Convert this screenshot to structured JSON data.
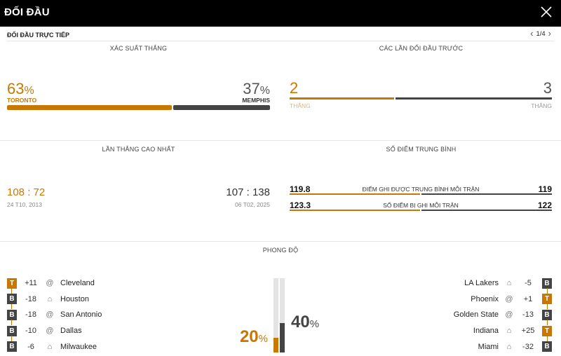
{
  "header": {
    "title": "ĐỐI ĐẦU",
    "close_icon": "close-icon"
  },
  "subheader": {
    "label": "ĐỐI ĐẦU TRỰC TIẾP",
    "pager": "1/4"
  },
  "win_probability": {
    "title": "XÁC SUẤT THẮNG",
    "home_value": "63",
    "home_unit": "%",
    "home_team": "TORONTO",
    "away_value": "37",
    "away_unit": "%",
    "away_team": "MEMPHIS",
    "home_fraction": 0.63
  },
  "previous_meetings": {
    "title": "CÁC LẦN ĐỐI ĐẦU TRƯỚC",
    "home_wins": "2",
    "away_wins": "3",
    "home_label": "THẮNG",
    "away_label": "THẮNG",
    "home_fraction": 0.4
  },
  "biggest_win": {
    "title": "LẦN THẮNG CAO NHẤT",
    "home_score_a": "108",
    "home_score_b": "72",
    "home_date": "24 T10, 2013",
    "away_score_a": "107",
    "away_score_b": "138",
    "away_date": "06 T02, 2025",
    "sep": ":"
  },
  "average_points": {
    "title": "SỐ ĐIỂM TRUNG BÌNH",
    "rows": [
      {
        "label": "ĐIỂM GHI ĐƯỢC TRUNG BÌNH MỖI TRẬN",
        "home": "119.8",
        "away": "119",
        "home_fraction": 0.5
      },
      {
        "label": "SỐ ĐIỂM BỊ GHI MỖI TRẬN",
        "home": "123.3",
        "away": "122",
        "home_fraction": 0.5
      }
    ]
  },
  "form": {
    "title": "PHONG ĐỘ",
    "home_pct": "20",
    "away_pct": "40",
    "pct_unit": "%",
    "home_fraction": 0.2,
    "away_fraction": 0.4,
    "home_games": [
      {
        "result": "T",
        "margin": "+11",
        "venue": "@",
        "opponent": "Cleveland"
      },
      {
        "result": "B",
        "margin": "-18",
        "venue": "⌂",
        "opponent": "Houston"
      },
      {
        "result": "B",
        "margin": "-18",
        "venue": "@",
        "opponent": "San Antonio"
      },
      {
        "result": "B",
        "margin": "-10",
        "venue": "@",
        "opponent": "Dallas"
      },
      {
        "result": "B",
        "margin": "-6",
        "venue": "⌂",
        "opponent": "Milwaukee"
      }
    ],
    "away_games": [
      {
        "result": "B",
        "margin": "-5",
        "venue": "⌂",
        "opponent": "LA Lakers"
      },
      {
        "result": "T",
        "margin": "+1",
        "venue": "@",
        "opponent": "Phoenix"
      },
      {
        "result": "B",
        "margin": "-13",
        "venue": "@",
        "opponent": "Golden State"
      },
      {
        "result": "T",
        "margin": "+25",
        "venue": "⌂",
        "opponent": "Indiana"
      },
      {
        "result": "B",
        "margin": "-32",
        "venue": "⌂",
        "opponent": "Miami"
      }
    ]
  },
  "colors": {
    "home": "#c87800",
    "away": "#444444"
  }
}
